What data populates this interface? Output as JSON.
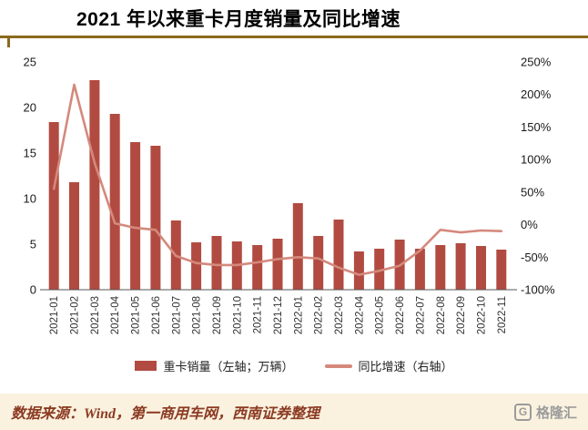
{
  "header": {
    "title": "2021 年以来重卡月度销量及同比增速"
  },
  "chart_data": {
    "type": "bar+line",
    "title": "2021 年以来重卡月度销量及同比增速",
    "categories": [
      "2021-01",
      "2021-02",
      "2021-03",
      "2021-04",
      "2021-05",
      "2021-06",
      "2021-07",
      "2021-08",
      "2021-09",
      "2021-10",
      "2021-11",
      "2021-12",
      "2022-01",
      "2022-02",
      "2022-03",
      "2022-04",
      "2022-05",
      "2022-06",
      "2022-07",
      "2022-08",
      "2022-09",
      "2022-10",
      "2022-11"
    ],
    "series": [
      {
        "name": "重卡销量（左轴；万辆）",
        "type": "bar",
        "axis": "left",
        "color": "#b14b41",
        "values": [
          18.4,
          11.8,
          23.0,
          19.3,
          16.2,
          15.8,
          7.6,
          5.2,
          5.9,
          5.3,
          4.9,
          5.6,
          9.5,
          5.9,
          7.7,
          4.2,
          4.5,
          5.5,
          4.5,
          4.9,
          5.1,
          4.8,
          4.4
        ]
      },
      {
        "name": "同比增速（右轴）",
        "type": "line",
        "axis": "right",
        "color": "#d4897c",
        "values": [
          55,
          215,
          95,
          2,
          -5,
          -8,
          -48,
          -59,
          -62,
          -62,
          -58,
          -53,
          -50,
          -52,
          -66,
          -77,
          -71,
          -63,
          -40,
          -8,
          -12,
          -9,
          -10
        ]
      }
    ],
    "left_axis": {
      "min": 0,
      "max": 25,
      "ticks": [
        {
          "value": 0,
          "label": "0"
        },
        {
          "value": 5,
          "label": "5"
        },
        {
          "value": 10,
          "label": "10"
        },
        {
          "value": 15,
          "label": "15"
        },
        {
          "value": 20,
          "label": "20"
        },
        {
          "value": 25,
          "label": "25"
        }
      ]
    },
    "right_axis": {
      "min": -100,
      "max": 250,
      "ticks": [
        {
          "value": -100,
          "label": "-100%"
        },
        {
          "value": -50,
          "label": "-50%"
        },
        {
          "value": 0,
          "label": "0%"
        },
        {
          "value": 50,
          "label": "50%"
        },
        {
          "value": 100,
          "label": "100%"
        },
        {
          "value": 150,
          "label": "150%"
        },
        {
          "value": 200,
          "label": "200%"
        },
        {
          "value": 250,
          "label": "250%"
        }
      ]
    },
    "grid": false,
    "legend_position": "bottom"
  },
  "legend": {
    "bar_label": "重卡销量（左轴；万辆）",
    "line_label": "同比增速（右轴）"
  },
  "footer": {
    "source": "数据来源：Wind，第一商用车网，西南证券整理",
    "logo_letter": "G",
    "logo_text": "格隆汇"
  },
  "colors": {
    "bar": "#b14b41",
    "line": "#d4897c",
    "divider": "#8a6a1c",
    "footer_bg": "#faf2df",
    "source_text": "#8c3a22",
    "logo_grey": "#9b9b9b",
    "axis_line": "#555555"
  }
}
